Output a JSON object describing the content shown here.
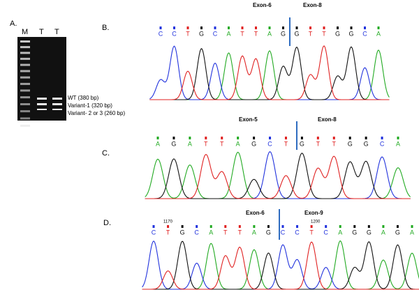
{
  "panel_a": {
    "label": "A.",
    "lanes": [
      "M",
      "T",
      "T"
    ],
    "bands": [
      "WT (380 bp)",
      "Variant-1 (320 bp)",
      "Variant- 2 or 3 (260 bp)"
    ]
  },
  "panel_b": {
    "label": "B.",
    "exon_left": "Exon-6",
    "exon_right": "Exon-8",
    "bases": [
      "C",
      "C",
      "T",
      "G",
      "C",
      "A",
      "T",
      "T",
      "A",
      "G",
      "G",
      "T",
      "T",
      "G",
      "G",
      "C",
      "A"
    ]
  },
  "panel_c": {
    "label": "C.",
    "exon_left": "Exon-5",
    "exon_right": "Exon-8",
    "bases": [
      "A",
      "G",
      "A",
      "T",
      "T",
      "A",
      "G",
      "C",
      "T",
      "G",
      "T",
      "T",
      "G",
      "G",
      "C",
      "A"
    ]
  },
  "panel_d": {
    "label": "D.",
    "exon_left": "Exon-6",
    "exon_right": "Exon-9",
    "positions": [
      "1170",
      "1200"
    ],
    "bases": [
      "C",
      "T",
      "G",
      "C",
      "A",
      "T",
      "T",
      "A",
      "G",
      "C",
      "C",
      "T",
      "C",
      "A",
      "G",
      "G",
      "A",
      "G",
      "A"
    ]
  }
}
